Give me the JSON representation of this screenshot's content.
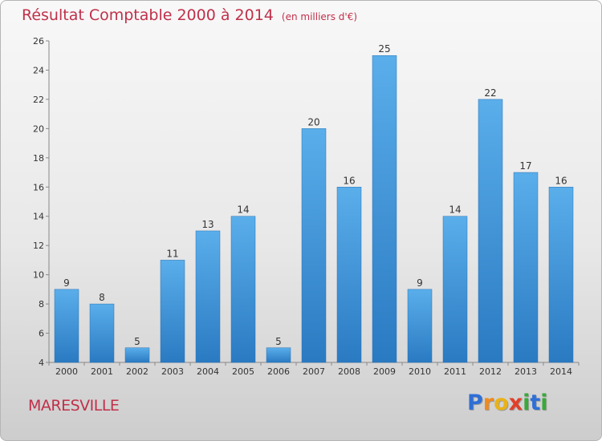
{
  "title": "Résultat Comptable 2000 à 2014",
  "unit_note": "(en milliers d'€)",
  "commune": "MARESVILLE",
  "logo": {
    "text": "Proxiti",
    "letters": [
      {
        "ch": "P",
        "color": "#2f6fd6"
      },
      {
        "ch": "r",
        "color": "#f08a1c"
      },
      {
        "ch": "o",
        "color": "#e9b21a"
      },
      {
        "ch": "x",
        "color": "#e0402a"
      },
      {
        "ch": "i",
        "color": "#3aa83a"
      },
      {
        "ch": "t",
        "color": "#2f6fd6"
      },
      {
        "ch": "i",
        "color": "#3aa83a"
      }
    ]
  },
  "colors": {
    "bar_light": "#5aaeea",
    "bar_dark": "#2a7ac2",
    "text_accent": "#c0304a",
    "axis": "#888888"
  },
  "chart_data": {
    "type": "bar",
    "title": "Résultat Comptable 2000 à 2014",
    "xlabel": "",
    "ylabel": "",
    "categories": [
      "2000",
      "2001",
      "2002",
      "2003",
      "2004",
      "2005",
      "2006",
      "2007",
      "2008",
      "2009",
      "2010",
      "2011",
      "2012",
      "2013",
      "2014"
    ],
    "values": [
      9,
      8,
      5,
      11,
      13,
      14,
      5,
      20,
      16,
      25,
      9,
      14,
      22,
      17,
      16
    ],
    "ylim": [
      4,
      26
    ],
    "yticks": [
      4,
      6,
      8,
      10,
      12,
      14,
      16,
      18,
      20,
      22,
      24,
      26
    ],
    "grid": false,
    "data_labels": true
  }
}
